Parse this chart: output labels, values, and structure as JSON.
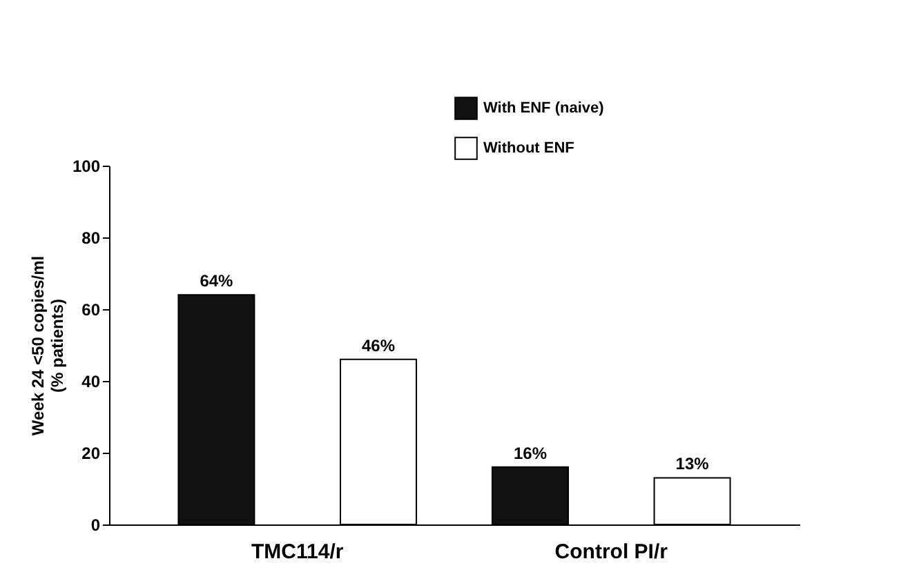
{
  "chart_data": {
    "type": "bar",
    "ylabel": "Week 24 <50 copies/ml\n(% patients)",
    "categories": [
      "TMC114/r",
      "Control PI/r"
    ],
    "series": [
      {
        "name": "With ENF (naive)",
        "color": "#111111",
        "values": [
          64,
          16
        ],
        "value_labels": [
          "64%",
          "16%"
        ]
      },
      {
        "name": "Without ENF",
        "color": "#ffffff",
        "values": [
          46,
          13
        ],
        "value_labels": [
          "46%",
          "13%"
        ]
      }
    ],
    "ylim": [
      0,
      100
    ],
    "yticks": [
      0,
      20,
      40,
      60,
      80,
      100
    ],
    "grid": false,
    "legend": "top right"
  }
}
